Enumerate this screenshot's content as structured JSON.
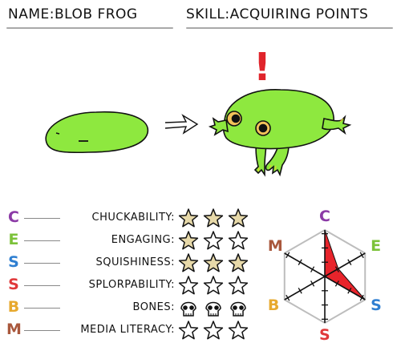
{
  "header": {
    "name_label": "NAME:",
    "name_value": "BLOB FROG",
    "skill_label": "SKILL:",
    "skill_value": "ACQUIRING POINTS"
  },
  "illustration": {
    "exclamation": "!",
    "before_icon": "blob-icon",
    "arrow_icon": "arrow-right-icon",
    "after_icon": "frog-icon",
    "blob_color": "#8ee83f",
    "frog_color": "#8ee83f"
  },
  "stats": [
    {
      "letter": "C",
      "color": "#8b3aa6",
      "label": "CHUCKABILITY:",
      "rating": 3,
      "icon": "star"
    },
    {
      "letter": "E",
      "color": "#7cc23a",
      "label": "ENGAGING:",
      "rating": 1,
      "icon": "star"
    },
    {
      "letter": "S",
      "color": "#2f7fd1",
      "label": "SQUISHINESS:",
      "rating": 3,
      "icon": "star"
    },
    {
      "letter": "S",
      "color": "#e0383a",
      "label": "SPLORPABILITY:",
      "rating": 0,
      "icon": "star"
    },
    {
      "letter": "B",
      "color": "#e7a92e",
      "label": "BONES:",
      "rating": 0,
      "icon": "skull"
    },
    {
      "letter": "M",
      "color": "#a9583d",
      "label": "MEDIA LITERACY:",
      "rating": 0,
      "icon": "star"
    }
  ],
  "radar": {
    "axes": [
      {
        "letter": "C",
        "color": "#8b3aa6"
      },
      {
        "letter": "E",
        "color": "#7cc23a"
      },
      {
        "letter": "S",
        "color": "#2f7fd1"
      },
      {
        "letter": "S",
        "color": "#e0383a"
      },
      {
        "letter": "B",
        "color": "#e7a92e"
      },
      {
        "letter": "M",
        "color": "#a9583d"
      }
    ],
    "values": [
      3,
      1,
      3,
      0,
      0,
      0
    ],
    "max": 3,
    "fill_color": "#e8242b"
  },
  "colors": {
    "star_fill": "#e7d9a9",
    "ink": "#111111",
    "rule": "#a9a9a9"
  }
}
